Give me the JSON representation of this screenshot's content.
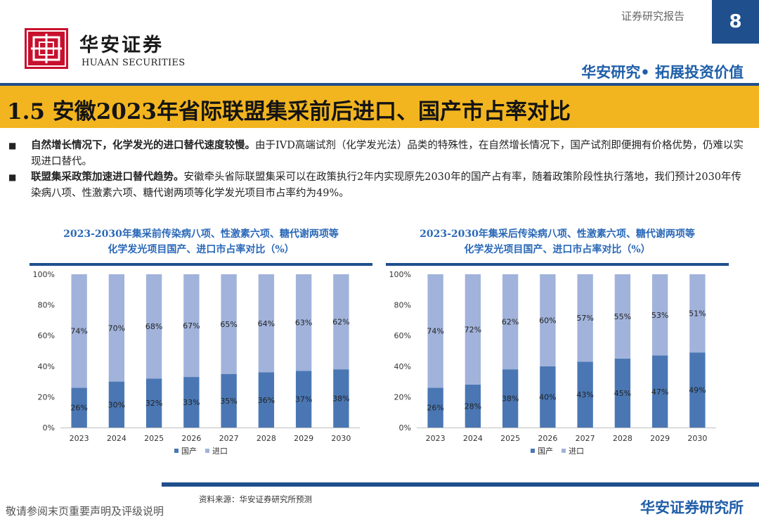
{
  "header": {
    "report_label": "证券研究报告",
    "page_number": "8",
    "logo_cn": "华安证券",
    "logo_en": "HUAAN SECURITIES",
    "slogan": "华安研究• 拓展投资价值"
  },
  "title": "1.5 安徽2023年省际联盟集采前后进口、国产市占率对比",
  "bullets": [
    {
      "bold": "自然增长情况下，化学发光的进口替代速度较慢。",
      "text": "由于IVD高端试剂（化学发光法）品类的特殊性，在自然增长情况下，国产试剂即便拥有价格优势，仍难以实现进口替代。"
    },
    {
      "bold": "联盟集采政策加速进口替代趋势。",
      "text": "安徽牵头省际联盟集采可以在政策执行2年内实现原先2030年的国产占有率，随着政策阶段性执行落地，我们预计2030年传染病八项、性激素六项、糖代谢两项等化学发光项目市占率约为49%。"
    }
  ],
  "chart_data": [
    {
      "type": "bar",
      "stacked": true,
      "title": "2023-2030年集采前传染病八项、性激素六项、糖代谢两项等化学发光项目国产、进口市占率对比（%）",
      "title_lines": [
        "2023-2030年集采前传染病八项、性激素六项、糖代谢两项等",
        "化学发光项目国产、进口市占率对比（%）"
      ],
      "categories": [
        "2023",
        "2024",
        "2025",
        "2026",
        "2027",
        "2028",
        "2029",
        "2030"
      ],
      "series": [
        {
          "name": "国产",
          "values": [
            26,
            30,
            32,
            33,
            35,
            36,
            37,
            38
          ],
          "color": "#4a77b4"
        },
        {
          "name": "进口",
          "values": [
            74,
            70,
            68,
            67,
            65,
            64,
            63,
            62
          ],
          "color": "#a1b3db"
        }
      ],
      "ylim": [
        0,
        100
      ],
      "yticks": [
        "0%",
        "20%",
        "40%",
        "60%",
        "80%",
        "100%"
      ],
      "legend": "bottom",
      "grid": false
    },
    {
      "type": "bar",
      "stacked": true,
      "title": "2023-2030年集采后传染病八项、性激素六项、糖代谢两项等化学发光项目国产、进口市占率对比（%）",
      "title_lines": [
        "2023-2030年集采后传染病八项、性激素六项、糖代谢两项等",
        "化学发光项目国产、进口市占率对比（%）"
      ],
      "categories": [
        "2023",
        "2024",
        "2025",
        "2026",
        "2027",
        "2028",
        "2029",
        "2030"
      ],
      "series": [
        {
          "name": "国产",
          "values": [
            26,
            28,
            38,
            40,
            43,
            45,
            47,
            49
          ],
          "color": "#4a77b4"
        },
        {
          "name": "进口",
          "values": [
            74,
            72,
            62,
            60,
            57,
            55,
            53,
            51
          ],
          "color": "#a1b3db"
        }
      ],
      "ylim": [
        0,
        100
      ],
      "yticks": [
        "0%",
        "20%",
        "40%",
        "60%",
        "80%",
        "100%"
      ],
      "legend": "bottom",
      "grid": false
    }
  ],
  "footer": {
    "source": "资料来源：华安证券研究所预测",
    "disclaimer": "敬请参阅末页重要声明及评级说明",
    "org": "华安证券研究所"
  }
}
